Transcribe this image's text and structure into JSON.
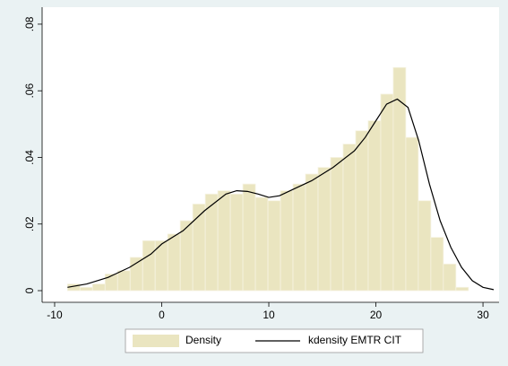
{
  "chart_data": {
    "type": "histogram",
    "bins": [
      -8.8,
      -7.63,
      -6.46,
      -5.29,
      -4.12,
      -2.95,
      -1.78,
      -0.61,
      0.56,
      1.73,
      2.9,
      4.07,
      5.24,
      6.41,
      7.58,
      8.75,
      9.92,
      11.09,
      12.26,
      13.43,
      14.6,
      15.77,
      16.94,
      18.11,
      19.28,
      20.45,
      21.62,
      22.79,
      23.96,
      25.13,
      26.3,
      27.47,
      28.64
    ],
    "series": [
      {
        "name": "Density",
        "type": "histogram",
        "color": "#eae5c0",
        "values": [
          0.002,
          0.001,
          0.002,
          0.005,
          0.006,
          0.01,
          0.015,
          0.015,
          0.017,
          0.021,
          0.026,
          0.029,
          0.03,
          0.029,
          0.032,
          0.028,
          0.027,
          0.03,
          0.032,
          0.035,
          0.037,
          0.04,
          0.044,
          0.048,
          0.051,
          0.059,
          0.067,
          0.046,
          0.027,
          0.016,
          0.008,
          0.001
        ]
      },
      {
        "name": "kdensity EMTR CIT",
        "type": "line",
        "color": "#000000",
        "x": [
          -8.8,
          -7,
          -5,
          -3,
          -1,
          0,
          2,
          4,
          6,
          7,
          8,
          9,
          10,
          11,
          12,
          14,
          16,
          18,
          19,
          20,
          21,
          22,
          23,
          24,
          25,
          26,
          27,
          28,
          29,
          30,
          31
        ],
        "values": [
          0.001,
          0.002,
          0.004,
          0.007,
          0.011,
          0.014,
          0.018,
          0.024,
          0.029,
          0.03,
          0.0298,
          0.029,
          0.028,
          0.0285,
          0.03,
          0.033,
          0.037,
          0.042,
          0.046,
          0.051,
          0.056,
          0.0575,
          0.055,
          0.045,
          0.032,
          0.021,
          0.013,
          0.007,
          0.003,
          0.001,
          0.0003
        ]
      }
    ],
    "xlim": [
      -11.17,
      31.5
    ],
    "xticks": [
      -10,
      0,
      10,
      20,
      30
    ],
    "ylim": [
      -0.0035,
      0.0851
    ],
    "yticks": [
      0,
      {
        "value": 0.02,
        "label": ".02"
      },
      {
        "value": 0.04,
        "label": ".04"
      },
      {
        "value": 0.06,
        "label": ".06"
      },
      {
        "value": 0.08,
        "label": ".08"
      }
    ],
    "grid": false,
    "legend": "bottom"
  }
}
